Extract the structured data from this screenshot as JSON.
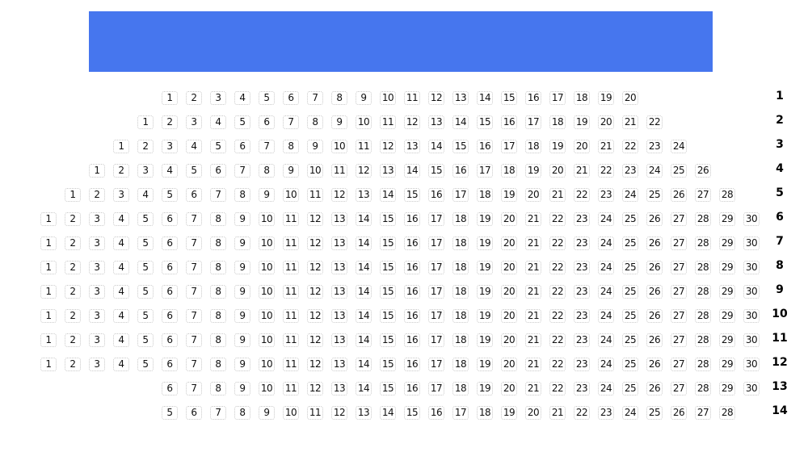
{
  "screen": {
    "color": "#4676EE"
  },
  "rows": [
    {
      "label": "1",
      "seats": [
        "1",
        "2",
        "3",
        "4",
        "5",
        "6",
        "7",
        "8",
        "9",
        "10",
        "11",
        "12",
        "13",
        "14",
        "15",
        "16",
        "17",
        "18",
        "19",
        "20"
      ]
    },
    {
      "label": "2",
      "seats": [
        "1",
        "2",
        "3",
        "4",
        "5",
        "6",
        "7",
        "8",
        "9",
        "10",
        "11",
        "12",
        "13",
        "14",
        "15",
        "16",
        "17",
        "18",
        "19",
        "20",
        "21",
        "22"
      ]
    },
    {
      "label": "3",
      "seats": [
        "1",
        "2",
        "3",
        "4",
        "5",
        "6",
        "7",
        "8",
        "9",
        "10",
        "11",
        "12",
        "13",
        "14",
        "15",
        "16",
        "17",
        "18",
        "19",
        "20",
        "21",
        "22",
        "23",
        "24"
      ]
    },
    {
      "label": "4",
      "seats": [
        "1",
        "2",
        "3",
        "4",
        "5",
        "6",
        "7",
        "8",
        "9",
        "10",
        "11",
        "12",
        "13",
        "14",
        "15",
        "16",
        "17",
        "18",
        "19",
        "20",
        "21",
        "22",
        "23",
        "24",
        "25",
        "26"
      ]
    },
    {
      "label": "5",
      "seats": [
        "1",
        "2",
        "3",
        "4",
        "5",
        "6",
        "7",
        "8",
        "9",
        "10",
        "11",
        "12",
        "13",
        "14",
        "15",
        "16",
        "17",
        "18",
        "19",
        "20",
        "21",
        "22",
        "23",
        "24",
        "25",
        "26",
        "27",
        "28"
      ]
    },
    {
      "label": "6",
      "seats": [
        "1",
        "2",
        "3",
        "4",
        "5",
        "6",
        "7",
        "8",
        "9",
        "10",
        "11",
        "12",
        "13",
        "14",
        "15",
        "16",
        "17",
        "18",
        "19",
        "20",
        "21",
        "22",
        "23",
        "24",
        "25",
        "26",
        "27",
        "28",
        "29",
        "30"
      ]
    },
    {
      "label": "7",
      "seats": [
        "1",
        "2",
        "3",
        "4",
        "5",
        "6",
        "7",
        "8",
        "9",
        "10",
        "11",
        "12",
        "13",
        "14",
        "15",
        "16",
        "17",
        "18",
        "19",
        "20",
        "21",
        "22",
        "23",
        "24",
        "25",
        "26",
        "27",
        "28",
        "29",
        "30"
      ]
    },
    {
      "label": "8",
      "seats": [
        "1",
        "2",
        "3",
        "4",
        "5",
        "6",
        "7",
        "8",
        "9",
        "10",
        "11",
        "12",
        "13",
        "14",
        "15",
        "16",
        "17",
        "18",
        "19",
        "20",
        "21",
        "22",
        "23",
        "24",
        "25",
        "26",
        "27",
        "28",
        "29",
        "30"
      ]
    },
    {
      "label": "9",
      "seats": [
        "1",
        "2",
        "3",
        "4",
        "5",
        "6",
        "7",
        "8",
        "9",
        "10",
        "11",
        "12",
        "13",
        "14",
        "15",
        "16",
        "17",
        "18",
        "19",
        "20",
        "21",
        "22",
        "23",
        "24",
        "25",
        "26",
        "27",
        "28",
        "29",
        "30"
      ]
    },
    {
      "label": "10",
      "seats": [
        "1",
        "2",
        "3",
        "4",
        "5",
        "6",
        "7",
        "8",
        "9",
        "10",
        "11",
        "12",
        "13",
        "14",
        "15",
        "16",
        "17",
        "18",
        "19",
        "20",
        "21",
        "22",
        "23",
        "24",
        "25",
        "26",
        "27",
        "28",
        "29",
        "30"
      ]
    },
    {
      "label": "11",
      "seats": [
        "1",
        "2",
        "3",
        "4",
        "5",
        "6",
        "7",
        "8",
        "9",
        "10",
        "11",
        "12",
        "13",
        "14",
        "15",
        "16",
        "17",
        "18",
        "19",
        "20",
        "21",
        "22",
        "23",
        "24",
        "25",
        "26",
        "27",
        "28",
        "29",
        "30"
      ]
    },
    {
      "label": "12",
      "seats": [
        "1",
        "2",
        "3",
        "4",
        "5",
        "6",
        "7",
        "8",
        "9",
        "10",
        "11",
        "12",
        "13",
        "14",
        "15",
        "16",
        "17",
        "18",
        "19",
        "20",
        "21",
        "22",
        "23",
        "24",
        "25",
        "26",
        "27",
        "28",
        "29",
        "30"
      ]
    },
    {
      "label": "13",
      "seats": [
        "6",
        "7",
        "8",
        "9",
        "10",
        "11",
        "12",
        "13",
        "14",
        "15",
        "16",
        "17",
        "18",
        "19",
        "20",
        "21",
        "22",
        "23",
        "24",
        "25",
        "26",
        "27",
        "28",
        "29",
        "30"
      ]
    },
    {
      "label": "14",
      "seats": [
        "5",
        "6",
        "7",
        "8",
        "9",
        "10",
        "11",
        "12",
        "13",
        "14",
        "15",
        "16",
        "17",
        "18",
        "19",
        "20",
        "21",
        "22",
        "23",
        "24",
        "25",
        "26",
        "27",
        "28"
      ]
    }
  ]
}
